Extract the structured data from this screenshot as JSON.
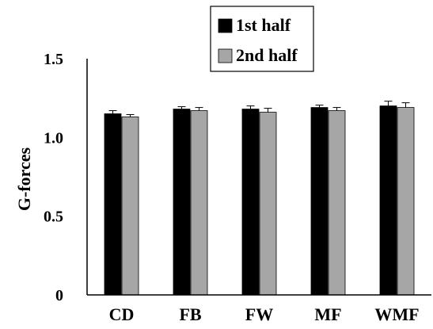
{
  "chart_data": {
    "type": "bar",
    "title": "",
    "xlabel": "",
    "ylabel": "G-forces",
    "ylim": [
      0,
      1.5
    ],
    "yticks": [
      "0",
      "0.5",
      "1.0",
      "1.5"
    ],
    "categories": [
      "CD",
      "FB",
      "FW",
      "MF",
      "WMF"
    ],
    "series": [
      {
        "name": "1st half",
        "color": "#000000",
        "values": [
          1.15,
          1.18,
          1.18,
          1.19,
          1.2
        ],
        "errors": [
          0.02,
          0.015,
          0.02,
          0.015,
          0.03
        ]
      },
      {
        "name": "2nd half",
        "color": "#a6a6a6",
        "values": [
          1.13,
          1.17,
          1.16,
          1.17,
          1.19
        ],
        "errors": [
          0.015,
          0.02,
          0.025,
          0.02,
          0.03
        ]
      }
    ],
    "grid": false,
    "legend_position": "top-center"
  }
}
